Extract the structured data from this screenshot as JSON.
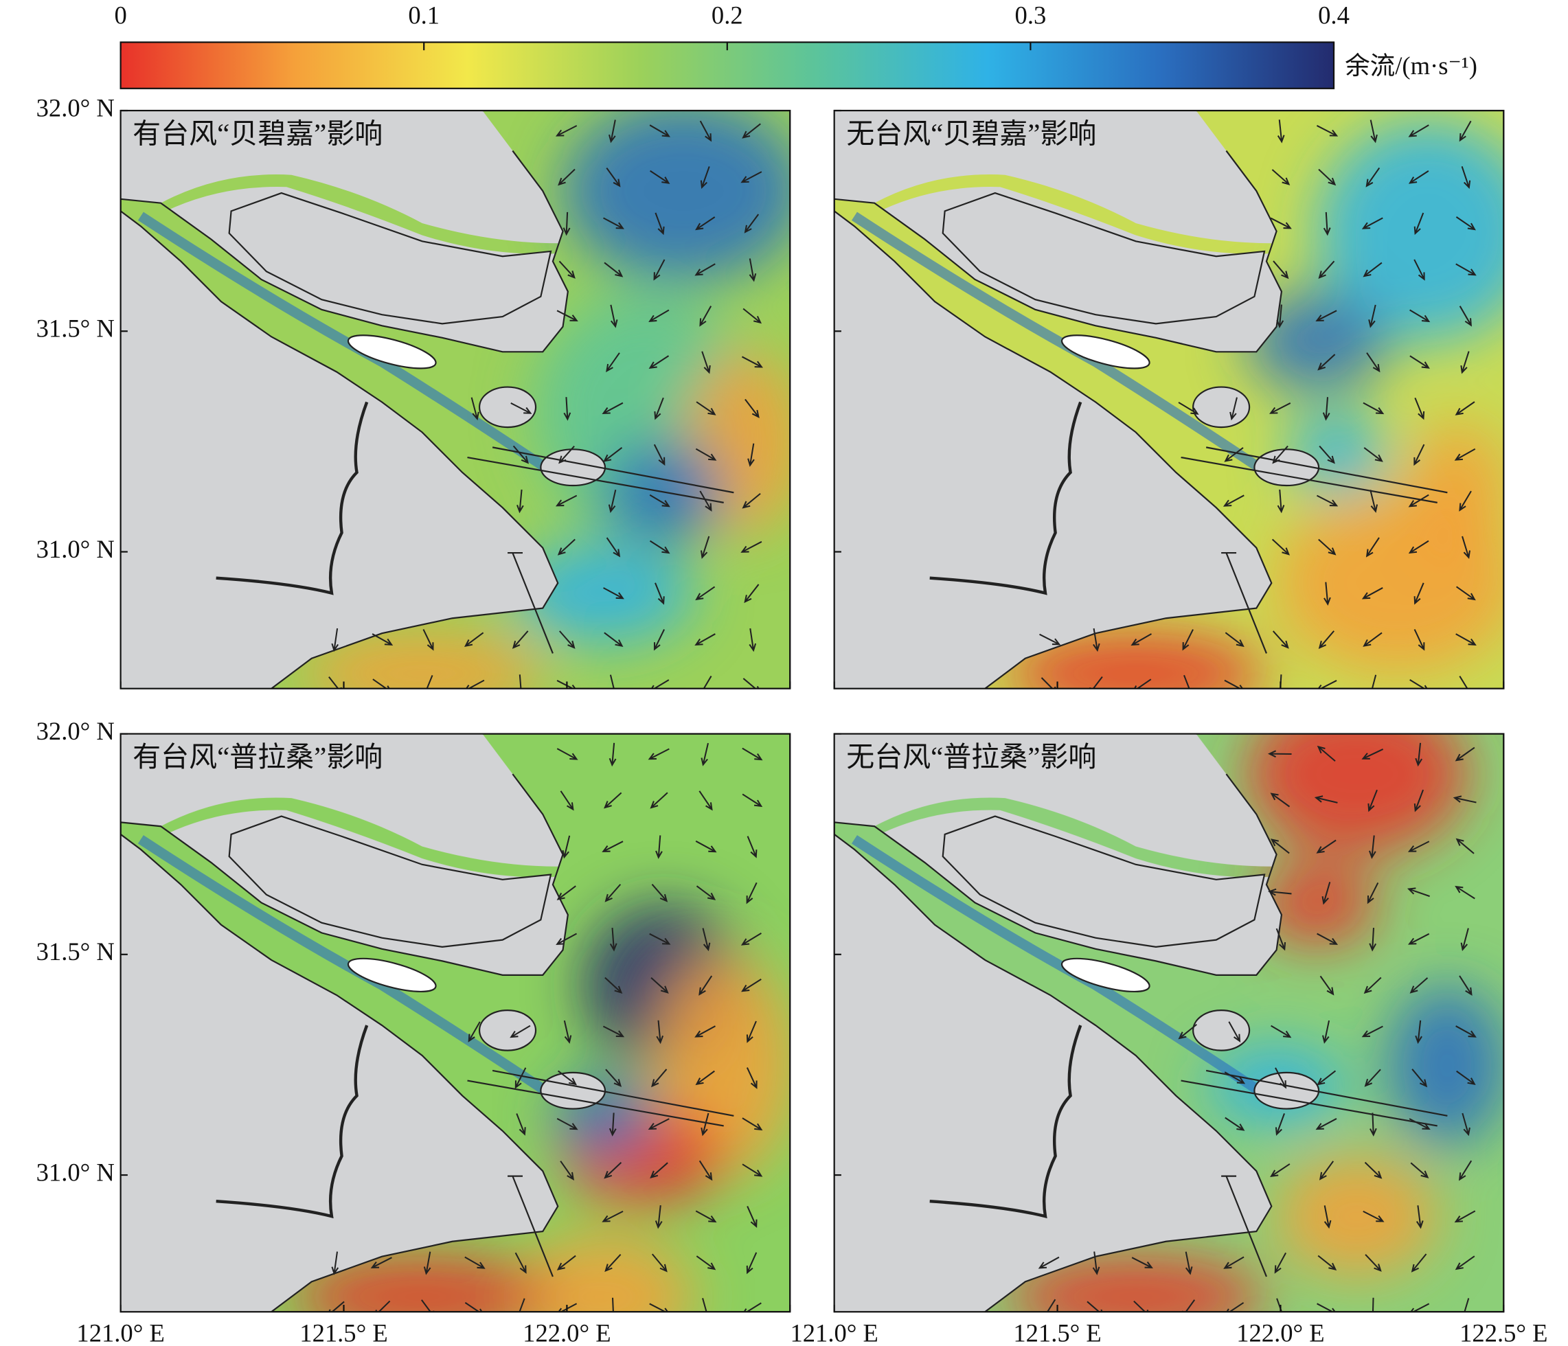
{
  "colorbar": {
    "label": "余流/(m·s⁻¹)",
    "lim": [
      0,
      0.4
    ],
    "ticks": [
      0,
      0.1,
      0.2,
      0.3,
      0.4
    ],
    "colors": [
      "#e8322a",
      "#f5a03a",
      "#f2e84a",
      "#9cd15a",
      "#5cc49a",
      "#2fb2e6",
      "#2a6fc0",
      "#232b6e"
    ]
  },
  "map": {
    "lon_lim": [
      121.0,
      122.5
    ],
    "lat_lim": [
      30.69,
      32.0
    ],
    "lon_ticks": [
      {
        "value": 121.0,
        "label": "121.0° E"
      },
      {
        "value": 121.5,
        "label": "121.5° E"
      },
      {
        "value": 122.0,
        "label": "122.0° E"
      },
      {
        "value": 122.5,
        "label": "122.5° E"
      }
    ],
    "lat_ticks": [
      {
        "value": 31.0,
        "label": "31.0° N"
      },
      {
        "value": 31.5,
        "label": "31.5° N"
      },
      {
        "value": 32.0,
        "label": "32.0° N"
      }
    ]
  },
  "panels": [
    {
      "title": "有台风“贝碧嘉”影响"
    },
    {
      "title": "无台风“贝碧嘉”影响"
    },
    {
      "title": "有台风“普拉桑”影响"
    },
    {
      "title": "无台风“普拉桑”影响"
    }
  ]
}
